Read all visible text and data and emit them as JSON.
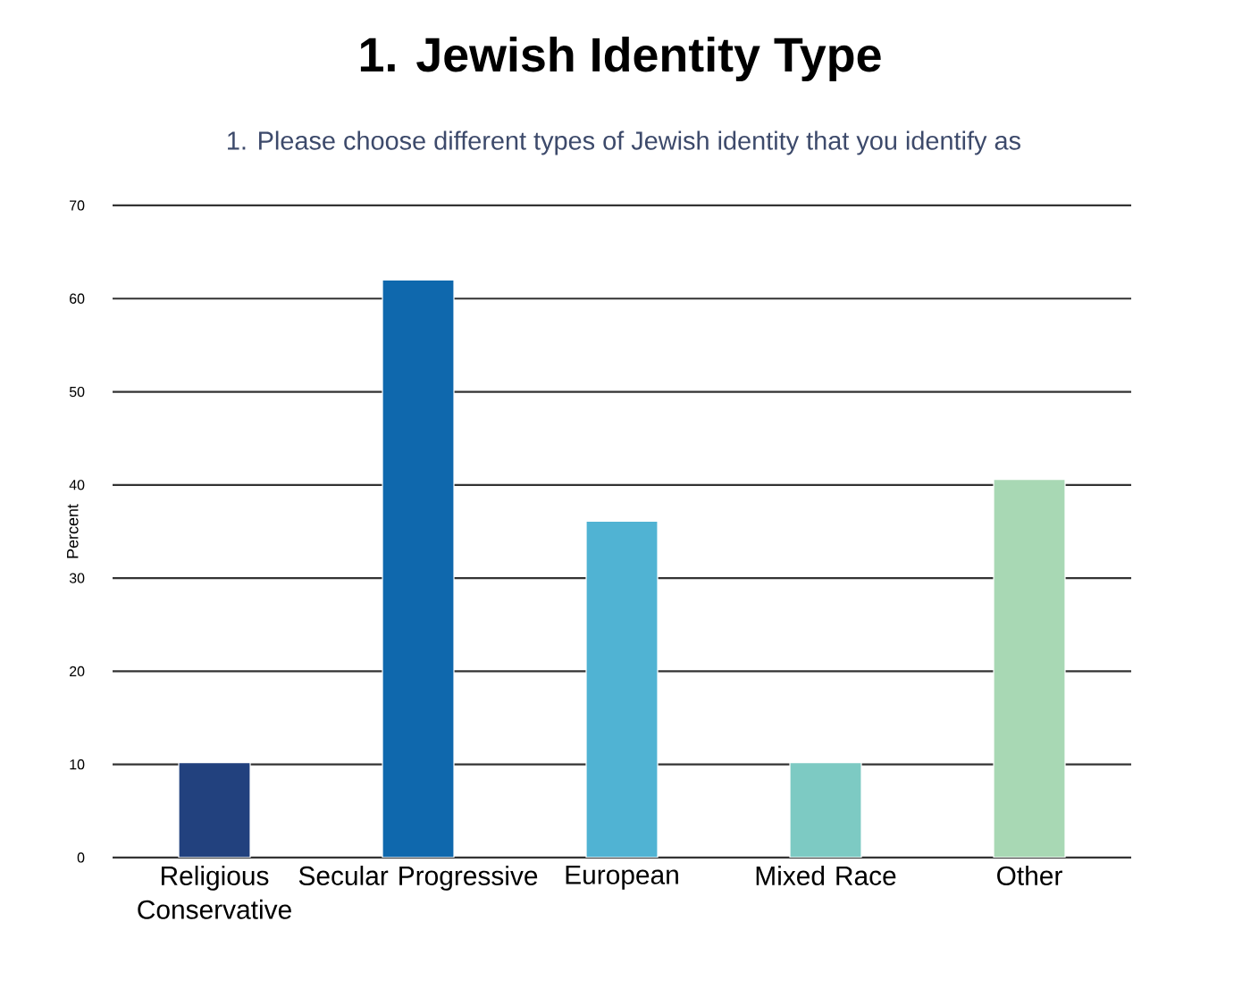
{
  "chart_data": {
    "type": "bar",
    "title": "1.  Jewish Identity Type",
    "subtitle": "1. Please choose different types of Jewish identity that you identify as",
    "ylabel": "Percent",
    "categories": [
      "Religious Conservative",
      "Secular Progressive",
      "European",
      "Mixed Race",
      "Other"
    ],
    "values": [
      10.2,
      62,
      36.1,
      10.2,
      40.6
    ],
    "colors": [
      "#22417e",
      "#0f68ad",
      "#50b3d3",
      "#7dcac3",
      "#a8d8b4"
    ],
    "ylim": [
      0,
      70
    ],
    "yticks": [
      0,
      10,
      20,
      30,
      40,
      50,
      60,
      70
    ],
    "grid": "y"
  }
}
